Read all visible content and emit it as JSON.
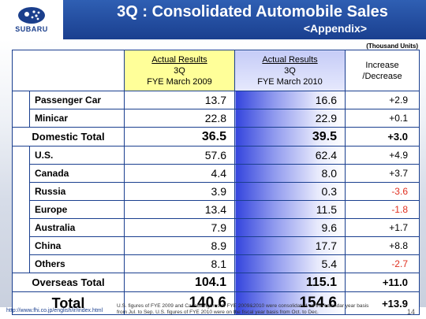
{
  "brand": {
    "logo_text": "SUBARU"
  },
  "header": {
    "title": "3Q : Consolidated Automobile Sales",
    "subtitle": "<Appendix>"
  },
  "units": "(Thousand Units)",
  "table": {
    "headers": {
      "col2009": {
        "line1": "Actual Results",
        "line2": "3Q",
        "line3": "FYE March 2009"
      },
      "col2010": {
        "line1": "Actual Results",
        "line2": "3Q",
        "line3": "FYE March 2010"
      },
      "colDiff": {
        "line1": "Increase",
        "line2": "/Decrease"
      }
    },
    "domestic_rows": [
      {
        "label": "Passenger Car",
        "v2009": "13.7",
        "v2010": "16.6",
        "diff": "+2.9"
      },
      {
        "label": "Minicar",
        "v2009": "22.8",
        "v2010": "22.9",
        "diff": "+0.1"
      }
    ],
    "domestic_total": {
      "label": "Domestic Total",
      "v2009": "36.5",
      "v2010": "39.5",
      "diff": "+3.0"
    },
    "overseas_rows": [
      {
        "label": "U.S.",
        "v2009": "57.6",
        "v2010": "62.4",
        "diff": "+4.9"
      },
      {
        "label": "Canada",
        "v2009": "4.4",
        "v2010": "8.0",
        "diff": "+3.7"
      },
      {
        "label": "Russia",
        "v2009": "3.9",
        "v2010": "0.3",
        "diff": "-3.6"
      },
      {
        "label": "Europe",
        "v2009": "13.4",
        "v2010": "11.5",
        "diff": "-1.8"
      },
      {
        "label": "Australia",
        "v2009": "7.9",
        "v2010": "9.6",
        "diff": "+1.7"
      },
      {
        "label": "China",
        "v2009": "8.9",
        "v2010": "17.7",
        "diff": "+8.8"
      },
      {
        "label": "Others",
        "v2009": "8.1",
        "v2010": "5.4",
        "diff": "-2.7"
      }
    ],
    "overseas_total": {
      "label": "Overseas Total",
      "v2009": "104.1",
      "v2010": "115.1",
      "diff": "+11.0"
    },
    "grand_total": {
      "label": "Total",
      "v2009": "140.6",
      "v2010": "154.6",
      "diff": "+13.9"
    }
  },
  "footer": {
    "url": "http://www.fhi.co.jp/english/ir/index.html",
    "note": "U.S. figures of FYE 2009 and Canada figures of FYE 2009&2010 were consolidated on the calendar year basis from Jul. to Sep. U.S. figures of FYE 2010 were on the fiscal year basis from Oct. to Dec.",
    "page": "14"
  },
  "colors": {
    "brand_blue": "#1a3f8f",
    "highlight_2009": "#ffff99",
    "negative": "#e03020"
  }
}
